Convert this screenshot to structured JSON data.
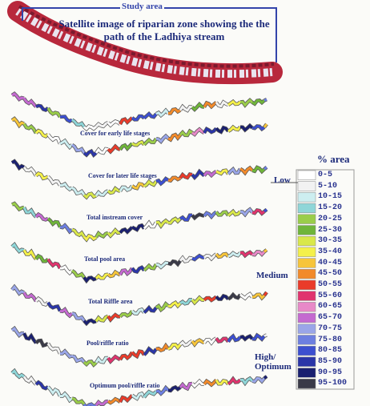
{
  "figure": {
    "study_label": "Study area",
    "title": "Satellite image of riparian zone showing the the path of the Ladhiya stream",
    "streams": [
      "Cover for early life stages",
      "Cover for later life stages",
      "Total instream cover",
      "Total pool area",
      "Total Riffle area",
      "Pool/riffle ratio",
      "Optimum pool/riffle ratio"
    ],
    "legend": {
      "title": "% area",
      "levels": [
        "Low",
        "Medium",
        "High/ Optimum"
      ],
      "classes": [
        {
          "label": "0-5",
          "color": "#ffffff"
        },
        {
          "label": "5-10",
          "color": "#f2f2f2"
        },
        {
          "label": "10-15",
          "color": "#cdeef0"
        },
        {
          "label": "15-20",
          "color": "#8fd6d8"
        },
        {
          "label": "20-25",
          "color": "#9acd4a"
        },
        {
          "label": "25-30",
          "color": "#6fb53a"
        },
        {
          "label": "30-35",
          "color": "#d9e84a"
        },
        {
          "label": "35-40",
          "color": "#f4f04a"
        },
        {
          "label": "40-45",
          "color": "#f7c53a"
        },
        {
          "label": "45-50",
          "color": "#f28a2a"
        },
        {
          "label": "50-55",
          "color": "#ea3b2a"
        },
        {
          "label": "55-60",
          "color": "#e0346e"
        },
        {
          "label": "60-65",
          "color": "#e889c8"
        },
        {
          "label": "65-70",
          "color": "#c46ad0"
        },
        {
          "label": "70-75",
          "color": "#9aa6e8"
        },
        {
          "label": "75-80",
          "color": "#6d7fe0"
        },
        {
          "label": "80-85",
          "color": "#3c4fd0"
        },
        {
          "label": "85-90",
          "color": "#2a35a8"
        },
        {
          "label": "90-95",
          "color": "#1a2070"
        },
        {
          "label": "95-100",
          "color": "#3a3a48"
        }
      ]
    }
  }
}
